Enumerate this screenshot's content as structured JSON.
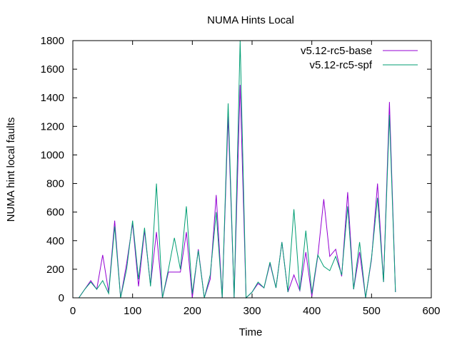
{
  "chart_data": {
    "type": "line",
    "title": "NUMA Hints Local",
    "xlabel": "Time",
    "ylabel": "NUMA hint local faults",
    "xlim": [
      0,
      600
    ],
    "ylim": [
      0,
      1800
    ],
    "xticks": [
      "0",
      "100",
      "200",
      "300",
      "400",
      "500",
      "600"
    ],
    "yticks": [
      "0",
      "200",
      "400",
      "600",
      "800",
      "1000",
      "1200",
      "1400",
      "1600",
      "1800"
    ],
    "grid": false,
    "legend_position": "top-right",
    "series": [
      {
        "name": "v5.12-rc5-base",
        "color": "#9400d3",
        "x": [
          10,
          20,
          30,
          40,
          50,
          60,
          70,
          80,
          90,
          100,
          110,
          120,
          130,
          140,
          150,
          160,
          170,
          180,
          190,
          200,
          210,
          220,
          230,
          240,
          250,
          260,
          270,
          280,
          290,
          300,
          310,
          320,
          330,
          340,
          350,
          360,
          370,
          380,
          390,
          400,
          410,
          420,
          430,
          440,
          450,
          460,
          470,
          480,
          490,
          500,
          510,
          520,
          530,
          540
        ],
        "y": [
          0,
          60,
          120,
          60,
          300,
          40,
          540,
          0,
          240,
          520,
          80,
          470,
          90,
          460,
          0,
          180,
          180,
          180,
          460,
          0,
          340,
          0,
          130,
          720,
          0,
          1270,
          0,
          1490,
          0,
          40,
          100,
          70,
          240,
          70,
          390,
          40,
          160,
          50,
          320,
          10,
          290,
          690,
          290,
          340,
          150,
          740,
          60,
          320,
          0,
          270,
          800,
          110,
          1370,
          40
        ]
      },
      {
        "name": "v5.12-rc5-spf",
        "color": "#009e73",
        "x": [
          10,
          20,
          30,
          40,
          50,
          60,
          70,
          80,
          90,
          100,
          110,
          120,
          130,
          140,
          150,
          160,
          170,
          180,
          190,
          200,
          210,
          220,
          230,
          240,
          250,
          260,
          270,
          280,
          290,
          300,
          310,
          320,
          330,
          340,
          350,
          360,
          370,
          380,
          390,
          400,
          410,
          420,
          430,
          440,
          450,
          460,
          470,
          480,
          490,
          500,
          510,
          520,
          530,
          540
        ],
        "y": [
          0,
          60,
          110,
          60,
          120,
          30,
          500,
          0,
          200,
          540,
          130,
          490,
          80,
          800,
          0,
          200,
          420,
          200,
          640,
          30,
          330,
          0,
          160,
          600,
          0,
          1360,
          0,
          1810,
          0,
          40,
          110,
          70,
          250,
          70,
          390,
          40,
          620,
          50,
          470,
          30,
          300,
          220,
          190,
          290,
          160,
          640,
          60,
          390,
          0,
          280,
          700,
          110,
          1280,
          40
        ]
      }
    ]
  }
}
